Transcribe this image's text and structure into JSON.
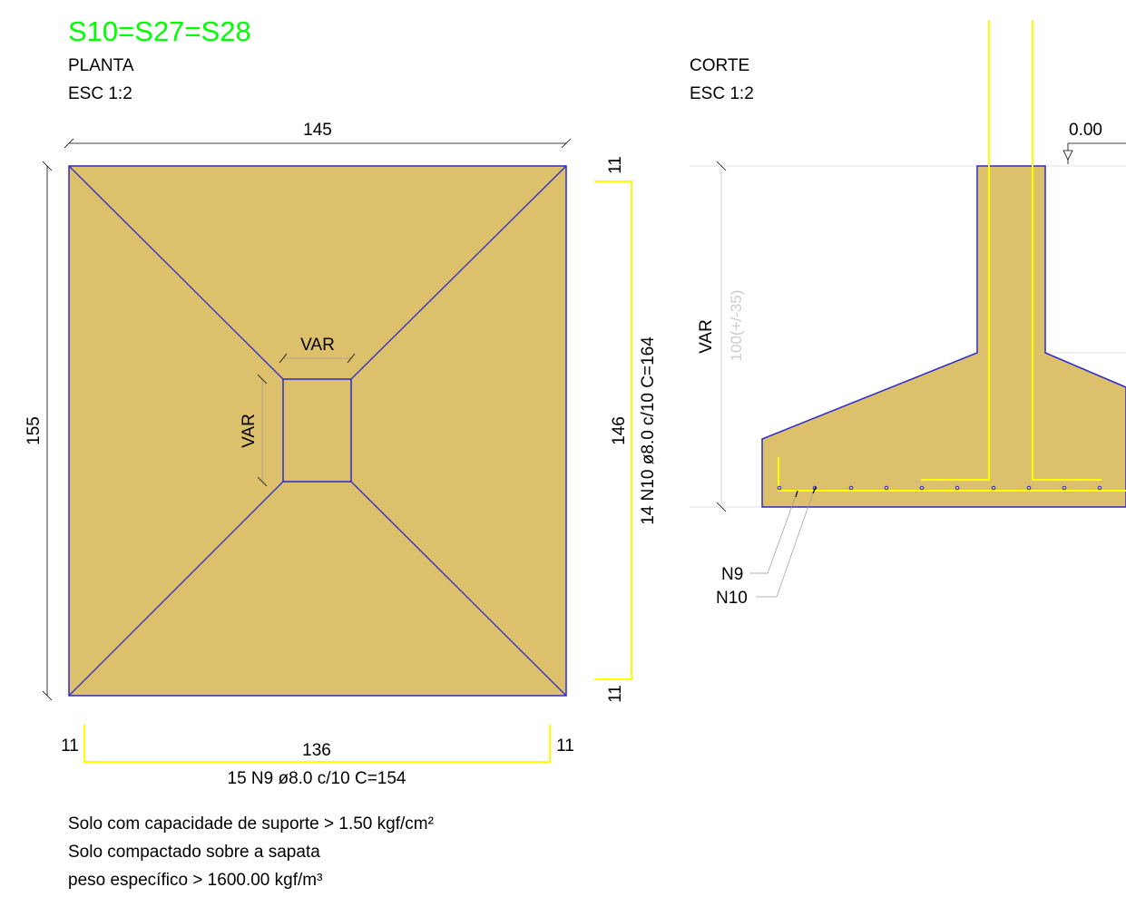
{
  "colors": {
    "concrete": "#DDC06C",
    "outline": "#2B2BC8",
    "rebar": "#FFFF00",
    "title": "#00FF00",
    "dim": "#000000",
    "faint": "#CCCCCC"
  },
  "title": "S10=S27=S28",
  "planta": {
    "heading": "PLANTA",
    "scale": "ESC 1:2",
    "dim_width": "145",
    "dim_height": "155",
    "pillar_width": "VAR",
    "pillar_height": "VAR",
    "rebar_vertical": {
      "hook_top": "11",
      "length": "146",
      "label": "14 N10 ø8.0 c/10  C=164",
      "hook_bottom": "11"
    },
    "rebar_horizontal": {
      "hook_left": "11",
      "length": "136",
      "hook_right": "11",
      "label": "15 N9 ø8.0 c/10  C=154"
    }
  },
  "corte": {
    "heading": "CORTE",
    "scale": "ESC 1:2",
    "level": "0.00",
    "height_label": "VAR",
    "height_value": "100(+/-35)",
    "callout_n9": "N9",
    "callout_n10": "N10"
  },
  "notes": [
    "Solo com capacidade de suporte > 1.50 kgf/cm²",
    "Solo compactado sobre a sapata",
    "peso específico > 1600.00 kgf/m³"
  ]
}
